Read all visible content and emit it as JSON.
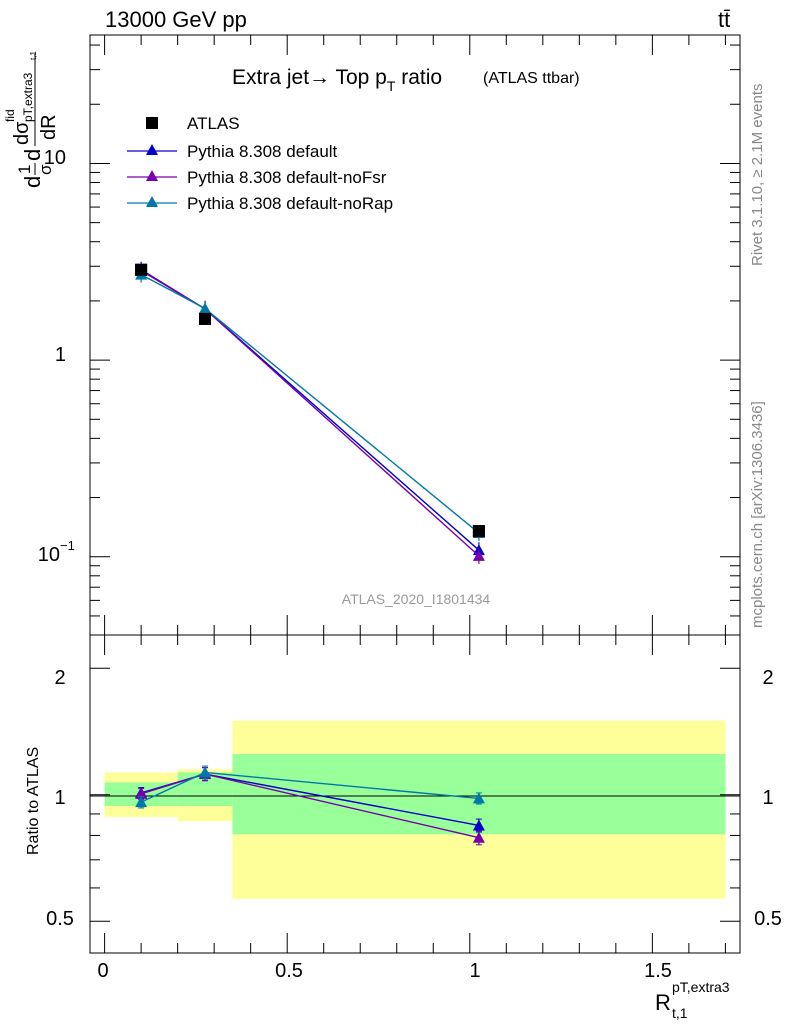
{
  "header": {
    "energy": "13000 GeV pp",
    "process": "tt̄"
  },
  "side_labels": {
    "rivet": "Rivet 3.1.10, ≥ 2.1M events",
    "source": "mcplots.cern.ch [arXiv:1306.3436]"
  },
  "chart_data": [
    {
      "type": "line",
      "panel": "main",
      "title": "Extra jet→ Top p_T ratio",
      "title_main": "Extra jet",
      "title_arrow": "→",
      "title_top": " Top p",
      "title_sub": "T",
      "title_tail": " ratio",
      "title_note": "(ATLAS ttbar)",
      "watermark": "ATLAS_2020_I1801434",
      "yscale": "log",
      "xlim": [
        -0.04,
        1.74
      ],
      "ylim": [
        0.04,
        45
      ],
      "ylabel": {
        "lead": "d",
        "one": "1",
        "sigma": "σ",
        "d2": "d",
        "num": "dσ",
        "fid": "fid",
        "sub": "pT,extra3",
        "subsub": "t,1",
        "den": "dR"
      },
      "yticks": [
        {
          "value": 0.1,
          "mant": "10",
          "exp": "−1"
        },
        {
          "value": 1,
          "label": "1"
        },
        {
          "value": 10,
          "label": "10"
        }
      ],
      "legend_position": "top-left",
      "series": [
        {
          "name": "ATLAS",
          "color": "#000000",
          "marker": "square",
          "x": [
            0.1,
            0.275,
            1.025
          ],
          "y": [
            2.88,
            1.62,
            0.135
          ]
        },
        {
          "name": "Pythia 8.308 default",
          "color": "#0000cc",
          "marker": "triangle",
          "x": [
            0.1,
            0.275,
            1.025
          ],
          "y": [
            2.88,
            1.82,
            0.108
          ]
        },
        {
          "name": "Pythia 8.308 default-noFsr",
          "color": "#7700aa",
          "marker": "triangle",
          "x": [
            0.1,
            0.275,
            1.025
          ],
          "y": [
            2.85,
            1.82,
            0.101
          ]
        },
        {
          "name": "Pythia 8.308 default-noRap",
          "color": "#0077aa",
          "marker": "triangle",
          "x": [
            0.1,
            0.275,
            1.025
          ],
          "y": [
            2.72,
            1.83,
            0.132
          ]
        }
      ]
    },
    {
      "type": "line",
      "panel": "ratio",
      "ylabel": "Ratio to ATLAS",
      "xlabel": {
        "base": "R",
        "sup": "pT,extra3",
        "sub": "t,1"
      },
      "yscale": "log",
      "xlim": [
        -0.04,
        1.74
      ],
      "ylim": [
        0.42,
        2.4
      ],
      "yticks": [
        0.5,
        1,
        2
      ],
      "xticks": [
        {
          "value": 0,
          "label": "0"
        },
        {
          "value": 0.5,
          "label": "0.5"
        },
        {
          "value": 1,
          "label": "1"
        },
        {
          "value": 1.5,
          "label": "1.5"
        }
      ],
      "bands": [
        {
          "x0": 0.0,
          "x1": 0.2,
          "yellow": [
            0.885,
            1.13
          ],
          "green": [
            0.94,
            1.07
          ]
        },
        {
          "x0": 0.2,
          "x1": 0.35,
          "yellow": [
            0.865,
            1.15
          ],
          "green": [
            0.94,
            1.13
          ]
        },
        {
          "x0": 0.35,
          "x1": 1.7,
          "yellow": [
            0.565,
            1.5
          ],
          "green": [
            0.805,
            1.25
          ]
        }
      ],
      "series": [
        {
          "name": "Pythia 8.308 default",
          "color": "#0000cc",
          "x": [
            0.1,
            0.275,
            1.025
          ],
          "y": [
            1.01,
            1.12,
            0.845
          ],
          "err": [
            0.03,
            0.04,
            0.03
          ]
        },
        {
          "name": "Pythia 8.308 default-noFsr",
          "color": "#7700aa",
          "x": [
            0.1,
            0.275,
            1.025
          ],
          "y": [
            1.005,
            1.12,
            0.79
          ],
          "err": [
            0.03,
            0.04,
            0.03
          ]
        },
        {
          "name": "Pythia 8.308 default-noRap",
          "color": "#0077aa",
          "x": [
            0.1,
            0.275,
            1.025
          ],
          "y": [
            0.96,
            1.13,
            0.98
          ],
          "err": [
            0.03,
            0.04,
            0.03
          ]
        }
      ]
    }
  ]
}
